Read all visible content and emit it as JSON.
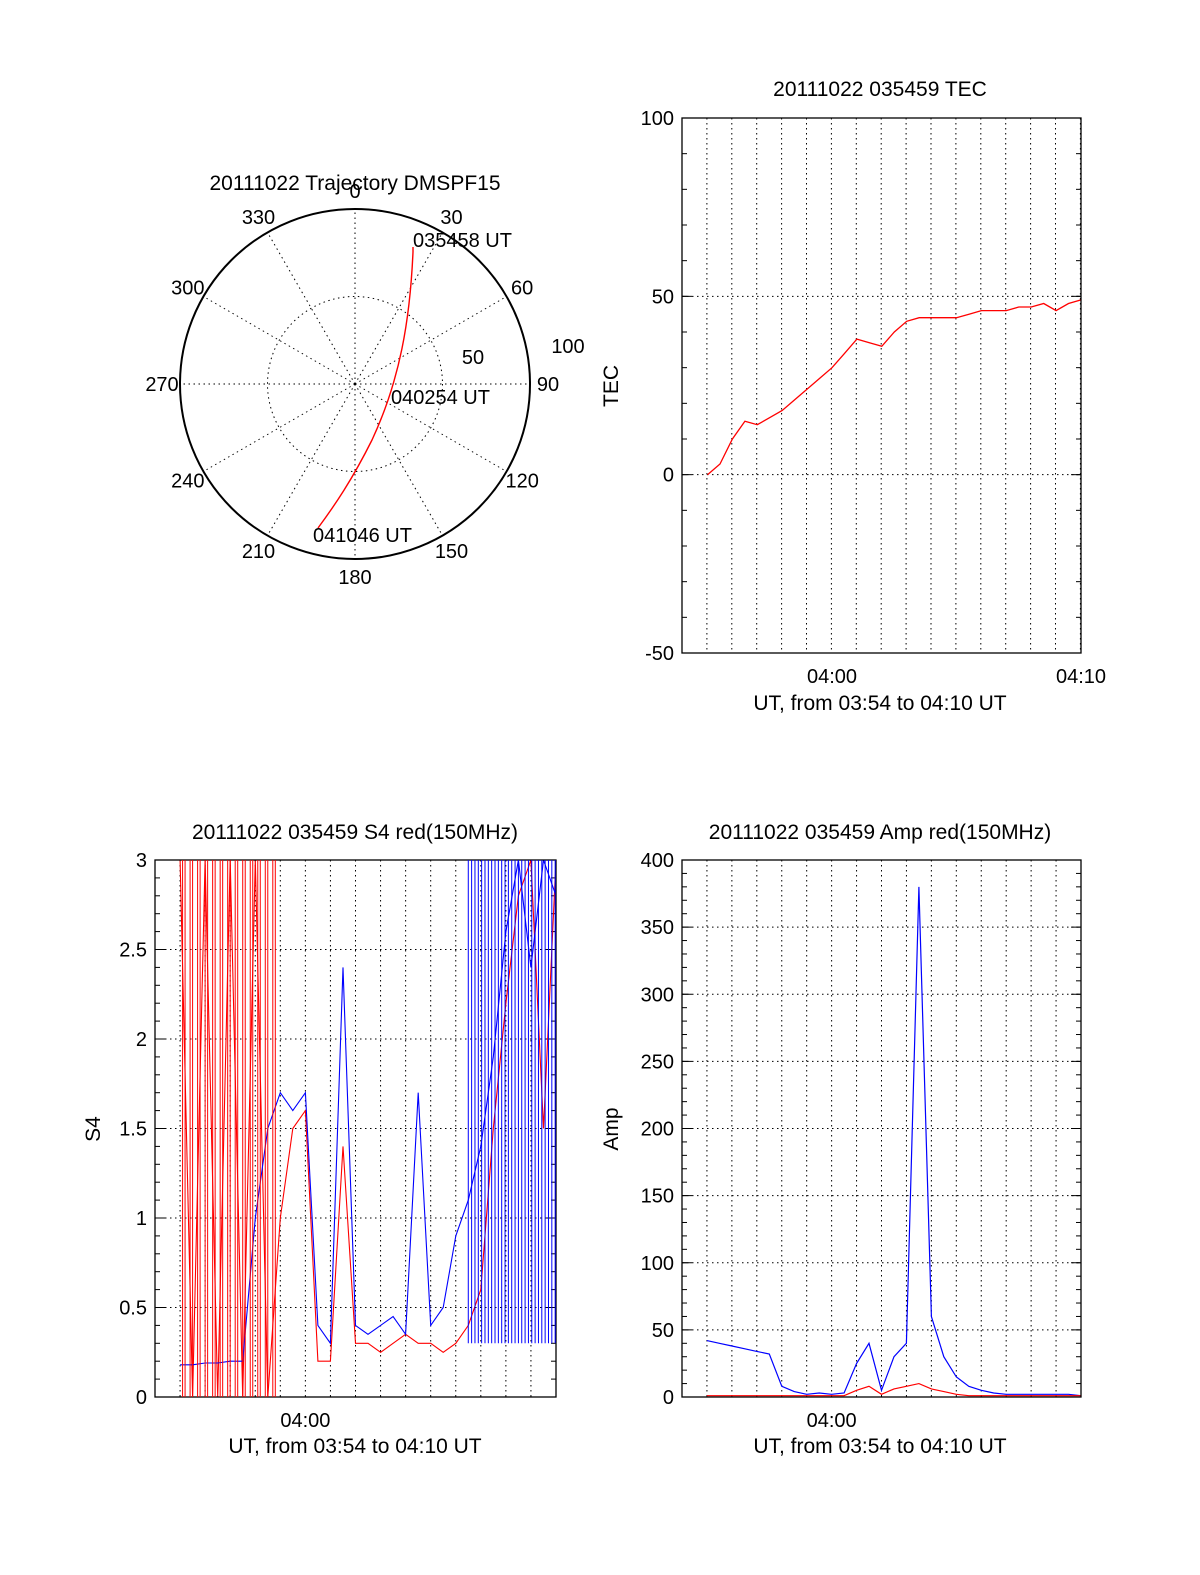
{
  "chart_data": [
    {
      "type": "polar",
      "title": "20111022 Trajectory DMSPF15",
      "angle_labels": [
        "0",
        "30",
        "60",
        "90",
        "120",
        "150",
        "180",
        "210",
        "240",
        "270",
        "300",
        "330"
      ],
      "radius_labels": [
        "50",
        "100"
      ],
      "rlim": [
        0,
        100
      ],
      "annotations": [
        "035458 UT",
        "040254 UT",
        "041046 UT"
      ],
      "colors": {
        "track": "#ff0000"
      },
      "track": [
        {
          "az": 24,
          "r": 80
        },
        {
          "az": 27,
          "r": 70
        },
        {
          "az": 33,
          "r": 55
        },
        {
          "az": 45,
          "r": 36
        },
        {
          "az": 75,
          "r": 22
        },
        {
          "az": 115,
          "r": 24
        },
        {
          "az": 145,
          "r": 36
        },
        {
          "az": 165,
          "r": 55
        },
        {
          "az": 178,
          "r": 70
        },
        {
          "az": 200,
          "r": 92
        }
      ],
      "track_times": [
        "035458 UT",
        "040254 UT",
        "041046 UT"
      ]
    },
    {
      "type": "line",
      "title": "20111022 035459 TEC",
      "xlabel": "UT, from 03:54 to 04:10 UT",
      "ylabel": "TEC",
      "xticks": [
        "04:00",
        "04:10"
      ],
      "ylim": [
        -50,
        100
      ],
      "yticks": [
        -50,
        0,
        50,
        100
      ],
      "grid": true,
      "colors": {
        "tec": "#ff0000"
      },
      "series": [
        {
          "color": "#ff0000",
          "x": [
            "03:55:00",
            "03:55:30",
            "03:56:00",
            "03:56:30",
            "03:57:00",
            "03:57:30",
            "03:58:00",
            "03:58:30",
            "03:59:00",
            "03:59:30",
            "04:00:00",
            "04:00:30",
            "04:01:00",
            "04:01:30",
            "04:02:00",
            "04:02:30",
            "04:03:00",
            "04:03:30",
            "04:04:00",
            "04:04:30",
            "04:05:00",
            "04:05:30",
            "04:06:00",
            "04:06:30",
            "04:07:00",
            "04:07:30",
            "04:08:00",
            "04:08:30",
            "04:09:00",
            "04:09:30",
            "04:10:00"
          ],
          "values": [
            0,
            3,
            10,
            15,
            14,
            16,
            18,
            21,
            24,
            27,
            30,
            34,
            38,
            37,
            36,
            40,
            43,
            44,
            44,
            44,
            44,
            45,
            46,
            46,
            46,
            47,
            47,
            48,
            46,
            48,
            49
          ]
        }
      ]
    },
    {
      "type": "line",
      "title": "20111022 035459 S4 red(150MHz)",
      "xlabel": "UT, from 03:54 to 04:10 UT",
      "ylabel": "S4",
      "xticks": [
        "04:00"
      ],
      "ylim": [
        0,
        3
      ],
      "yticks": [
        "0",
        "0.5",
        "1",
        "1.5",
        "2",
        "2.5",
        "3"
      ],
      "grid": true,
      "colors": {
        "red": "#ff0000",
        "blue": "#0000ff"
      },
      "series": [
        {
          "color": "#ff0000",
          "x": [
            "03:55:00",
            "03:55:30",
            "03:56:00",
            "03:56:30",
            "03:57:00",
            "03:57:30",
            "03:58:00",
            "03:58:30",
            "03:59:00",
            "03:59:30",
            "04:00:00",
            "04:00:30",
            "04:01:00",
            "04:01:30",
            "04:02:00",
            "04:02:30",
            "04:03:00",
            "04:03:30",
            "04:04:00",
            "04:04:30",
            "04:05:00",
            "04:05:30",
            "04:06:00",
            "04:06:30",
            "04:07:00",
            "04:07:30",
            "04:08:00",
            "04:08:30",
            "04:09:00",
            "04:09:30",
            "04:10:00"
          ],
          "values": [
            3,
            0,
            3,
            0,
            3,
            0,
            3,
            0,
            1.0,
            1.5,
            1.6,
            0.2,
            0.2,
            1.4,
            0.3,
            0.3,
            0.25,
            0.3,
            0.35,
            0.3,
            0.3,
            0.25,
            0.3,
            0.4,
            0.6,
            1.5,
            2.2,
            2.8,
            3,
            1.5,
            3
          ]
        },
        {
          "color": "#0000ff",
          "x": [
            "03:55:00",
            "03:55:30",
            "03:56:00",
            "03:56:30",
            "03:57:00",
            "03:57:30",
            "03:58:00",
            "03:58:30",
            "03:59:00",
            "03:59:30",
            "04:00:00",
            "04:00:30",
            "04:01:00",
            "04:01:30",
            "04:02:00",
            "04:02:30",
            "04:03:00",
            "04:03:30",
            "04:04:00",
            "04:04:30",
            "04:05:00",
            "04:05:30",
            "04:06:00",
            "04:06:30",
            "04:07:00",
            "04:07:30",
            "04:08:00",
            "04:08:30",
            "04:09:00",
            "04:09:30",
            "04:10:00"
          ],
          "values": [
            0.18,
            0.18,
            0.19,
            0.19,
            0.2,
            0.2,
            1.0,
            1.5,
            1.7,
            1.6,
            1.7,
            0.4,
            0.3,
            2.4,
            0.4,
            0.35,
            0.4,
            0.45,
            0.35,
            1.7,
            0.4,
            0.5,
            0.9,
            1.1,
            1.4,
            1.9,
            2.6,
            3,
            2.4,
            3,
            2.8
          ]
        }
      ]
    },
    {
      "type": "line",
      "title": "20111022 035459 Amp red(150MHz)",
      "xlabel": "UT, from 03:54 to 04:10 UT",
      "ylabel": "Amp",
      "xticks": [
        "04:00"
      ],
      "ylim": [
        0,
        400
      ],
      "yticks": [
        0,
        50,
        100,
        150,
        200,
        250,
        300,
        350,
        400
      ],
      "grid": true,
      "colors": {
        "red": "#ff0000",
        "blue": "#0000ff"
      },
      "series": [
        {
          "color": "#0000ff",
          "x": [
            "03:55:00",
            "03:55:30",
            "03:56:00",
            "03:56:30",
            "03:57:00",
            "03:57:30",
            "03:58:00",
            "03:58:30",
            "03:59:00",
            "03:59:30",
            "04:00:00",
            "04:00:30",
            "04:01:00",
            "04:01:30",
            "04:02:00",
            "04:02:30",
            "04:03:00",
            "04:03:30",
            "04:04:00",
            "04:04:30",
            "04:05:00",
            "04:05:30",
            "04:06:00",
            "04:06:30",
            "04:07:00",
            "04:07:30",
            "04:08:00",
            "04:08:30",
            "04:09:00",
            "04:09:30",
            "04:10:00"
          ],
          "values": [
            42,
            40,
            38,
            36,
            34,
            32,
            8,
            4,
            2,
            3,
            2,
            3,
            25,
            40,
            5,
            30,
            40,
            380,
            60,
            30,
            15,
            8,
            5,
            3,
            2,
            2,
            2,
            2,
            2,
            2,
            1
          ]
        },
        {
          "color": "#ff0000",
          "x": [
            "03:55:00",
            "03:55:30",
            "03:56:00",
            "03:56:30",
            "03:57:00",
            "03:57:30",
            "03:58:00",
            "03:58:30",
            "03:59:00",
            "03:59:30",
            "04:00:00",
            "04:00:30",
            "04:01:00",
            "04:01:30",
            "04:02:00",
            "04:02:30",
            "04:03:00",
            "04:03:30",
            "04:04:00",
            "04:04:30",
            "04:05:00",
            "04:05:30",
            "04:06:00",
            "04:06:30",
            "04:07:00",
            "04:07:30",
            "04:08:00",
            "04:08:30",
            "04:09:00",
            "04:09:30",
            "04:10:00"
          ],
          "values": [
            1,
            1,
            1,
            1,
            1,
            1,
            1,
            1,
            1,
            1,
            1,
            1,
            5,
            8,
            2,
            6,
            8,
            10,
            6,
            4,
            2,
            1,
            1,
            1,
            1,
            1,
            1,
            1,
            1,
            1,
            1
          ]
        }
      ]
    }
  ]
}
